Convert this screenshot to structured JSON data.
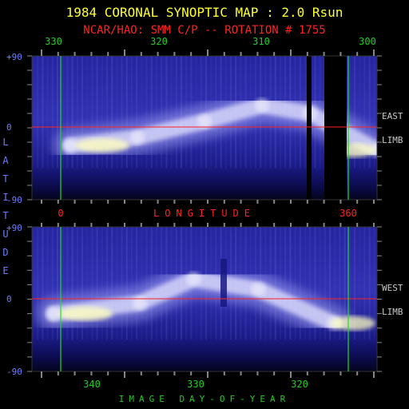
{
  "title": "1984 CORONAL SYNOPTIC MAP : 2.0 Rsun",
  "subtitle": "NCAR/HAO: SMM C/P -- ROTATION # 1755",
  "colors": {
    "background": "#000000",
    "title": "#ffff33",
    "subtitle": "#ff2222",
    "tick_green": "#22cc22",
    "latitude_blue": "#6f7cff",
    "guide_red": "#ff2222",
    "map_low": "#0a0a8c",
    "map_high": "#ffffc0"
  },
  "chart_data": [
    {
      "type": "heatmap",
      "panel": "east-limb",
      "side_label_1": "EAST",
      "side_label_2": "LIMB",
      "x_tick_labels": [
        "330",
        "320",
        "310",
        "300"
      ],
      "x_marker_labels": [
        "0",
        "360"
      ],
      "xlabel": "LONGITUDE",
      "ylabel": "LATITUDE",
      "y_tick_labels": [
        "+90",
        "0",
        "-90"
      ],
      "ylim": [
        -90,
        90
      ],
      "equator_line": 0,
      "data_gaps": [
        "yes"
      ],
      "bright_band": [
        {
          "x": 332,
          "lat": -22
        },
        {
          "x": 325,
          "lat": -12
        },
        {
          "x": 318,
          "lat": 8
        },
        {
          "x": 312,
          "lat": 28
        },
        {
          "x": 307,
          "lat": 18
        },
        {
          "x": 300,
          "lat": -28
        }
      ]
    },
    {
      "type": "heatmap",
      "panel": "west-limb",
      "side_label_1": "WEST",
      "side_label_2": "LIMB",
      "x_tick_labels": [
        "340",
        "330",
        "320"
      ],
      "xlabel": "IMAGE DAY-OF-YEAR",
      "y_tick_labels": [
        "+90",
        "0",
        "-90"
      ],
      "ylim": [
        -90,
        90
      ],
      "equator_line": 0,
      "bright_band": [
        {
          "x": 344,
          "lat": -18
        },
        {
          "x": 336,
          "lat": -5
        },
        {
          "x": 331,
          "lat": 25
        },
        {
          "x": 325,
          "lat": 12
        },
        {
          "x": 318,
          "lat": -30
        }
      ]
    }
  ]
}
